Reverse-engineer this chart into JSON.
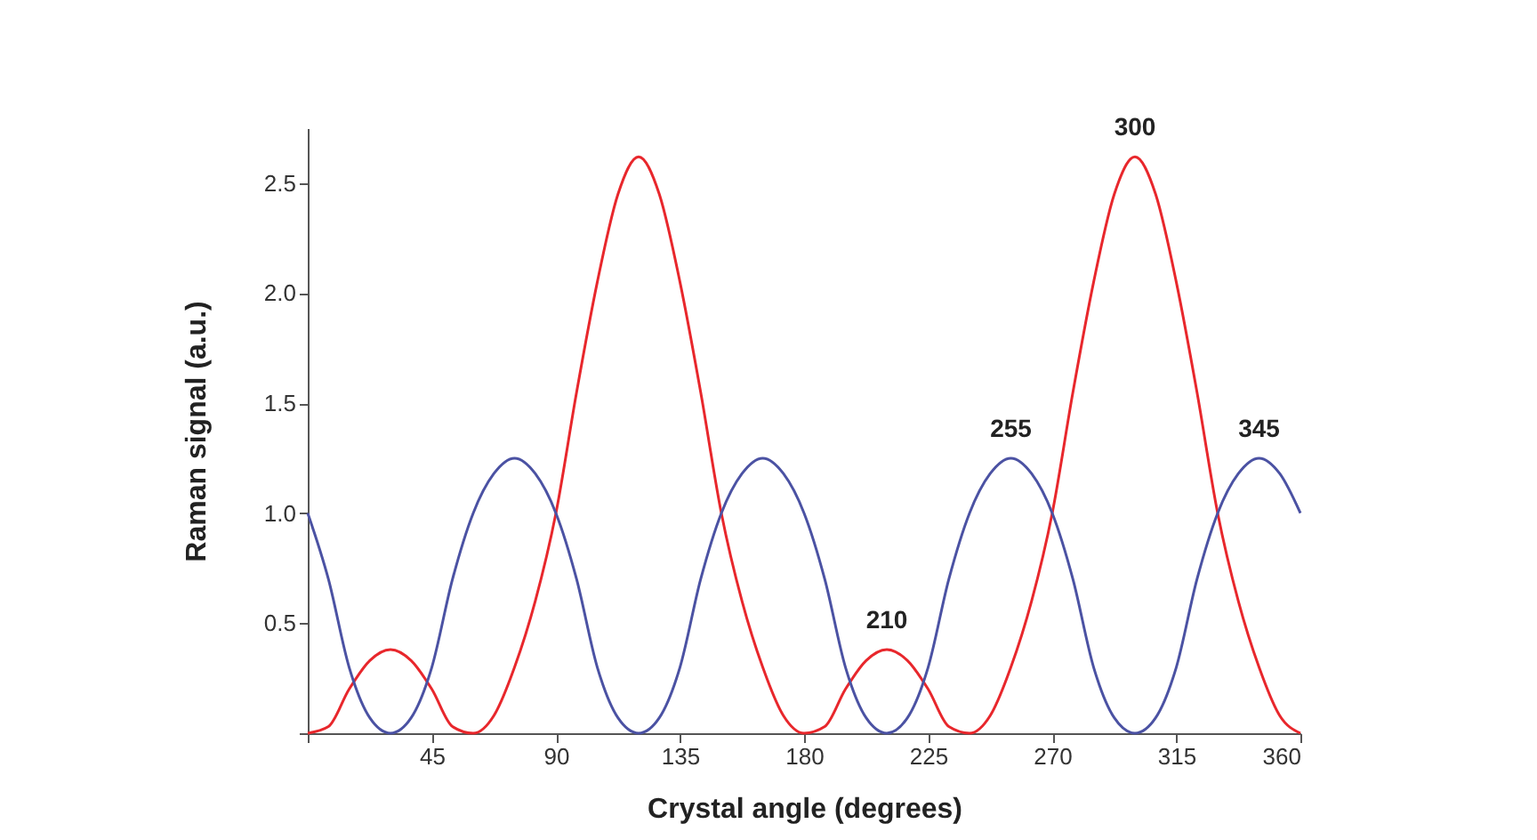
{
  "chart_data": {
    "type": "line",
    "xlabel": "Crystal angle (degrees)",
    "ylabel": "Raman signal (a.u.)",
    "x": [
      0,
      7.5,
      15,
      22.5,
      30,
      37.5,
      45,
      52.5,
      60,
      67.5,
      75,
      82.5,
      90,
      97.5,
      105,
      112.5,
      120,
      127.5,
      135,
      142.5,
      150,
      157.5,
      165,
      172.5,
      180,
      187.5,
      195,
      202.5,
      210,
      217.5,
      225,
      232.5,
      240,
      247.5,
      255,
      262.5,
      270,
      277.5,
      285,
      292.5,
      300,
      307.5,
      315,
      322.5,
      330,
      337.5,
      345,
      352.5,
      360
    ],
    "series": [
      {
        "color": "#e8272c",
        "values": [
          0,
          0.03,
          0.2,
          0.33,
          0.38,
          0.33,
          0.2,
          0.03,
          0,
          0.08,
          0.3,
          0.6,
          1.0,
          1.55,
          2.05,
          2.45,
          2.62,
          2.45,
          2.05,
          1.55,
          1.0,
          0.6,
          0.3,
          0.08,
          0,
          0.03,
          0.2,
          0.33,
          0.38,
          0.33,
          0.2,
          0.03,
          0,
          0.08,
          0.3,
          0.6,
          1.0,
          1.55,
          2.05,
          2.45,
          2.62,
          2.45,
          2.05,
          1.55,
          1.0,
          0.6,
          0.3,
          0.08,
          0
        ]
      },
      {
        "color": "#4b52a3",
        "values": [
          1.0,
          0.7,
          0.3,
          0.07,
          0,
          0.07,
          0.3,
          0.7,
          1.0,
          1.18,
          1.25,
          1.18,
          1.0,
          0.7,
          0.3,
          0.07,
          0,
          0.07,
          0.3,
          0.7,
          1.0,
          1.18,
          1.25,
          1.18,
          1.0,
          0.7,
          0.3,
          0.07,
          0,
          0.07,
          0.3,
          0.7,
          1.0,
          1.18,
          1.25,
          1.18,
          1.0,
          0.7,
          0.3,
          0.07,
          0,
          0.07,
          0.3,
          0.7,
          1.0,
          1.18,
          1.25,
          1.18,
          1.0
        ]
      }
    ],
    "xlim": [
      0,
      360
    ],
    "xticks": [
      {
        "value": 0,
        "label": null
      },
      45,
      90,
      135,
      180,
      225,
      270,
      315,
      360
    ],
    "ylim": [
      0,
      2.75
    ],
    "yticks": [
      {
        "value": 0,
        "label": null
      },
      0.5,
      {
        "value": 1.0,
        "label": "1.0"
      },
      1.5,
      {
        "value": 2.0,
        "label": "2.0"
      },
      2.5
    ],
    "annotations": [
      {
        "text": "210",
        "x": 210,
        "y": 0.38
      },
      {
        "text": "255",
        "x": 255,
        "y": 1.25
      },
      {
        "text": "300",
        "x": 300,
        "y": 2.62
      },
      {
        "text": "345",
        "x": 345,
        "y": 1.25
      }
    ],
    "grid": false
  }
}
